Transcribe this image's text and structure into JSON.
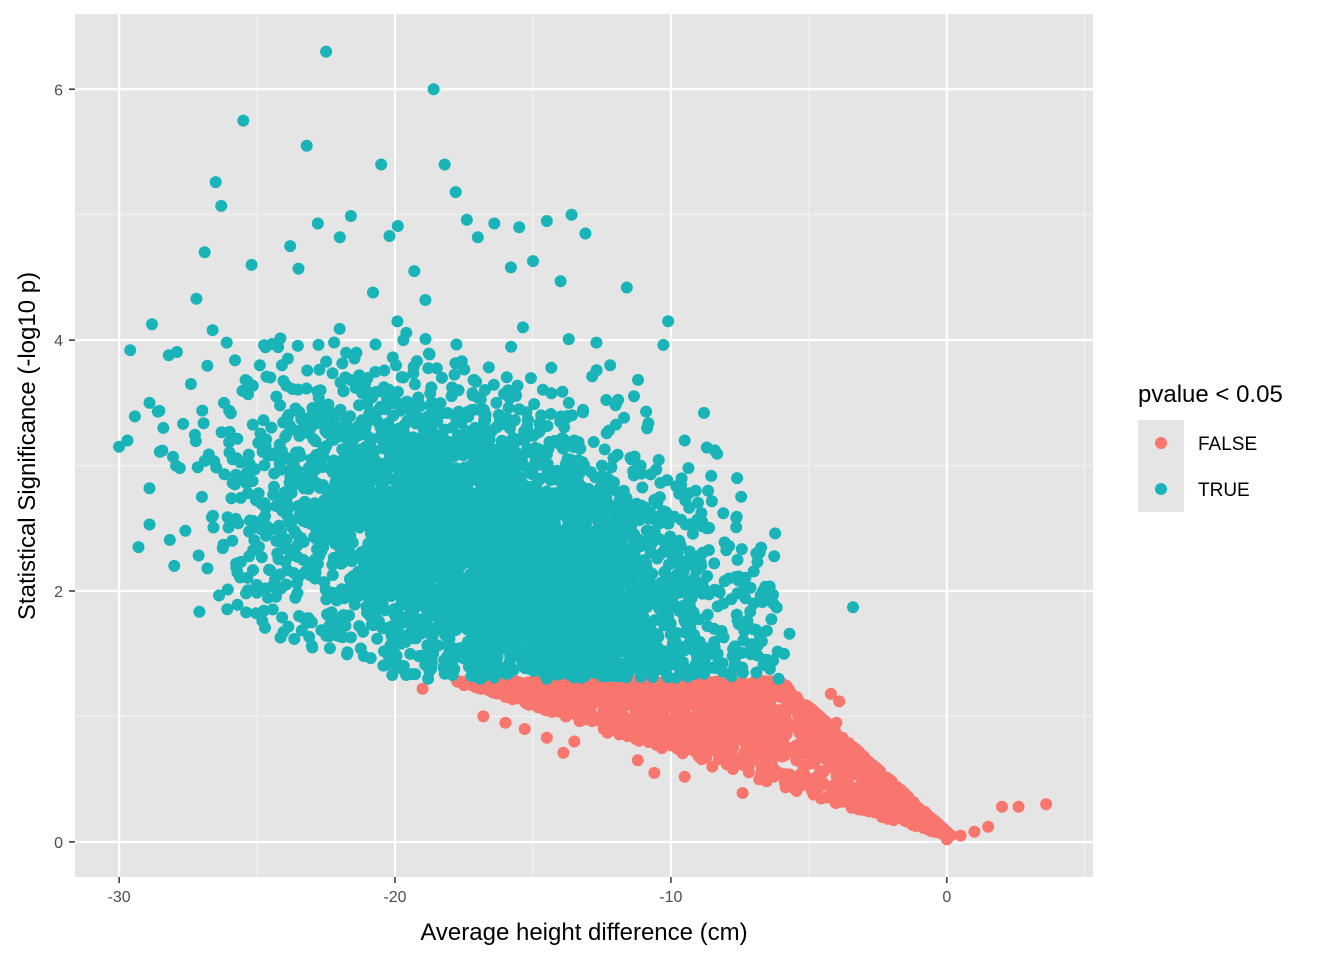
{
  "chart_data": {
    "type": "scatter",
    "xlabel": "Average height difference (cm)",
    "ylabel": "Statistical Significance (-log10 p)",
    "xlim": [
      -31.6,
      5.3
    ],
    "ylim": [
      -0.28,
      6.6
    ],
    "x_ticks": [
      -30,
      -20,
      -10,
      0
    ],
    "x_tick_labels": [
      "-30",
      "-20",
      "-10",
      "0"
    ],
    "y_ticks": [
      0,
      2,
      4,
      6
    ],
    "y_tick_labels": [
      "0",
      "2",
      "4",
      "6"
    ],
    "grid": true,
    "panel_background": "#e5e5e5",
    "legend": {
      "title": "pvalue < 0.05",
      "placement": "right",
      "entries": [
        {
          "label": "FALSE",
          "color": "#f8766d"
        },
        {
          "label": "TRUE",
          "color": "#19b4b8"
        }
      ]
    },
    "series": [
      {
        "name": "FALSE",
        "color": "#f8766d",
        "points": [
          [
            -19,
            1.22
          ],
          [
            -17.5,
            1.25
          ],
          [
            -16.8,
            1.0
          ],
          [
            -16,
            0.95
          ],
          [
            -15.3,
            0.9
          ],
          [
            -14.5,
            0.83
          ],
          [
            -13.9,
            0.71
          ],
          [
            -13.5,
            0.8
          ],
          [
            -12.3,
            0.87
          ],
          [
            -11.2,
            0.65
          ],
          [
            -10.6,
            0.55
          ],
          [
            -9.5,
            0.52
          ],
          [
            -8.5,
            0.6
          ],
          [
            -7.4,
            0.39
          ],
          [
            -6.8,
            0.5
          ],
          [
            -5.1,
            1.03
          ],
          [
            -4.5,
            0.85
          ],
          [
            -4.0,
            0.95
          ],
          [
            -4.2,
            1.18
          ],
          [
            -3.9,
            1.12
          ],
          [
            -3.7,
            0.68
          ],
          [
            -3.3,
            0.58
          ],
          [
            -2.7,
            0.39
          ],
          [
            -2.0,
            0.3
          ],
          [
            -1.5,
            0.22
          ],
          [
            -1.0,
            0.15
          ],
          [
            -0.5,
            0.1
          ],
          [
            0,
            0.02
          ],
          [
            0.5,
            0.05
          ],
          [
            1.0,
            0.08
          ],
          [
            1.5,
            0.12
          ],
          [
            2.0,
            0.28
          ],
          [
            2.6,
            0.28
          ],
          [
            3.6,
            0.3
          ],
          [
            -6.3,
            1.22
          ],
          [
            -5.9,
            1.2
          ],
          [
            -8.0,
            1.1
          ],
          [
            -9.0,
            1.05
          ],
          [
            -7.2,
            0.8
          ],
          [
            -5.5,
            0.42
          ],
          [
            -3.0,
            0.33
          ],
          [
            -2.3,
            0.45
          ]
        ]
      },
      {
        "name": "TRUE",
        "color": "#19b4b8",
        "points": [
          [
            -30,
            3.15
          ],
          [
            -29.6,
            3.92
          ],
          [
            -29.3,
            2.35
          ],
          [
            -28.9,
            3.5
          ],
          [
            -28.6,
            3.43
          ],
          [
            -28.2,
            3.88
          ],
          [
            -27.8,
            2.98
          ],
          [
            -27.4,
            3.65
          ],
          [
            -27.2,
            4.33
          ],
          [
            -26.9,
            4.7
          ],
          [
            -26.8,
            2.18
          ],
          [
            -26.5,
            5.26
          ],
          [
            -26.3,
            5.07
          ],
          [
            -26.1,
            3.98
          ],
          [
            -25.8,
            2.85
          ],
          [
            -25.5,
            5.75
          ],
          [
            -25.2,
            4.6
          ],
          [
            -24.7,
            2.02
          ],
          [
            -24.1,
            3.8
          ],
          [
            -23.8,
            4.75
          ],
          [
            -23.5,
            4.57
          ],
          [
            -23.2,
            5.55
          ],
          [
            -22.8,
            4.93
          ],
          [
            -22.5,
            6.3
          ],
          [
            -22.0,
            4.82
          ],
          [
            -21.6,
            4.99
          ],
          [
            -21.3,
            3.72
          ],
          [
            -20.8,
            4.38
          ],
          [
            -20.5,
            5.4
          ],
          [
            -20.2,
            4.83
          ],
          [
            -19.9,
            4.91
          ],
          [
            -19.6,
            1.33
          ],
          [
            -19.3,
            4.55
          ],
          [
            -18.9,
            4.32
          ],
          [
            -18.6,
            6.0
          ],
          [
            -18.2,
            5.4
          ],
          [
            -17.8,
            5.18
          ],
          [
            -17.4,
            4.96
          ],
          [
            -17.0,
            4.82
          ],
          [
            -16.4,
            4.93
          ],
          [
            -15.8,
            4.58
          ],
          [
            -15.5,
            4.9
          ],
          [
            -15.0,
            4.63
          ],
          [
            -14.5,
            4.95
          ],
          [
            -14.0,
            4.47
          ],
          [
            -13.6,
            5.0
          ],
          [
            -13.1,
            4.85
          ],
          [
            -12.7,
            3.98
          ],
          [
            -12.2,
            3.8
          ],
          [
            -11.6,
            4.42
          ],
          [
            -10.9,
            3.43
          ],
          [
            -10.1,
            4.15
          ],
          [
            -9.5,
            3.2
          ],
          [
            -8.8,
            3.42
          ],
          [
            -8.1,
            2.62
          ],
          [
            -7.6,
            2.9
          ],
          [
            -6.9,
            2.3
          ],
          [
            -6.3,
            1.97
          ],
          [
            -5.7,
            1.66
          ],
          [
            -3.4,
            1.87
          ],
          [
            -29.7,
            3.2
          ],
          [
            -28.9,
            2.53
          ],
          [
            -28.0,
            2.2
          ],
          [
            -27.6,
            2.48
          ],
          [
            -26.6,
            2.6
          ],
          [
            -25.9,
            2.4
          ],
          [
            -24.6,
            3.08
          ],
          [
            -23.7,
            2.9
          ],
          [
            -23.0,
            1.55
          ],
          [
            -22.7,
            3.6
          ],
          [
            -22.2,
            3.3
          ],
          [
            -21.6,
            1.63
          ],
          [
            -20.9,
            1.8
          ],
          [
            -20.4,
            1.52
          ],
          [
            -20.1,
            1.33
          ],
          [
            -19.8,
            2.2
          ],
          [
            -19.3,
            1.97
          ],
          [
            -18.9,
            1.75
          ],
          [
            -18.6,
            3.4
          ],
          [
            -18.1,
            1.48
          ],
          [
            -17.7,
            3.6
          ],
          [
            -17.3,
            2.1
          ],
          [
            -16.9,
            1.3
          ],
          [
            -16.5,
            2.9
          ],
          [
            -16.1,
            3.1
          ],
          [
            -15.7,
            1.9
          ],
          [
            -15.3,
            3.2
          ],
          [
            -14.9,
            2.5
          ],
          [
            -14.5,
            1.3
          ],
          [
            -14.1,
            2.7
          ],
          [
            -13.7,
            3.5
          ],
          [
            -13.3,
            1.6
          ],
          [
            -12.9,
            2.3
          ],
          [
            -12.5,
            3.0
          ],
          [
            -12.1,
            1.9
          ],
          [
            -11.7,
            2.5
          ],
          [
            -11.3,
            1.4
          ],
          [
            -10.9,
            2.1
          ],
          [
            -10.5,
            2.7
          ],
          [
            -10.1,
            1.8
          ],
          [
            -9.7,
            2.4
          ],
          [
            -9.3,
            1.6
          ],
          [
            -8.9,
            2.2
          ],
          [
            -8.5,
            1.5
          ],
          [
            -8.1,
            1.9
          ],
          [
            -7.7,
            1.4
          ],
          [
            -7.3,
            1.7
          ],
          [
            -6.9,
            1.35
          ],
          [
            -6.5,
            1.45
          ],
          [
            -6.1,
            1.3
          ],
          [
            -21.4,
            3.9
          ],
          [
            -19.7,
            4.0
          ],
          [
            -18.3,
            3.7
          ],
          [
            -17.1,
            3.3
          ],
          [
            -15.9,
            3.6
          ],
          [
            -14.7,
            3.4
          ],
          [
            -13.5,
            3.2
          ],
          [
            -12.3,
            2.9
          ],
          [
            -11.1,
            3.0
          ],
          [
            -10.3,
            2.6
          ],
          [
            -9.1,
            2.8
          ],
          [
            -24.9,
            3.8
          ],
          [
            -24.3,
            3.55
          ],
          [
            -23.3,
            3.35
          ],
          [
            -22.4,
            2.75
          ],
          [
            -21.0,
            2.6
          ],
          [
            -19.4,
            2.5
          ],
          [
            -18.0,
            2.35
          ],
          [
            -16.7,
            2.2
          ],
          [
            -15.1,
            2.05
          ],
          [
            -13.9,
            1.95
          ],
          [
            -12.7,
            1.8
          ],
          [
            -11.5,
            1.7
          ],
          [
            -10.7,
            1.55
          ],
          [
            -9.9,
            1.5
          ],
          [
            -25.3,
            2.9
          ],
          [
            -27.0,
            2.75
          ],
          [
            -28.4,
            3.3
          ],
          [
            -26.2,
            3.5
          ],
          [
            -23.9,
            2.6
          ],
          [
            -22.9,
            2.1
          ],
          [
            -21.8,
            2.0
          ],
          [
            -20.7,
            2.3
          ],
          [
            -19.0,
            2.8
          ],
          [
            -17.6,
            2.65
          ],
          [
            -16.3,
            2.45
          ],
          [
            -14.3,
            2.3
          ],
          [
            -13.1,
            2.1
          ],
          [
            -11.9,
            2.2
          ],
          [
            -10.0,
            2.3
          ],
          [
            -8.7,
            2.5
          ],
          [
            -7.9,
            2.1
          ],
          [
            -7.0,
            1.9
          ],
          [
            -6.7,
            1.6
          ],
          [
            -5.9,
            1.5
          ],
          [
            -18.8,
            1.3
          ],
          [
            -17.9,
            1.35
          ],
          [
            -17.2,
            1.42
          ],
          [
            -16.6,
            1.55
          ],
          [
            -15.6,
            1.5
          ],
          [
            -14.8,
            1.38
          ],
          [
            -13.8,
            1.42
          ],
          [
            -12.8,
            1.35
          ],
          [
            -11.8,
            1.32
          ],
          [
            -10.8,
            1.36
          ],
          [
            -9.8,
            1.31
          ],
          [
            -8.8,
            1.34
          ],
          [
            -7.8,
            1.32
          ]
        ]
      }
    ]
  }
}
